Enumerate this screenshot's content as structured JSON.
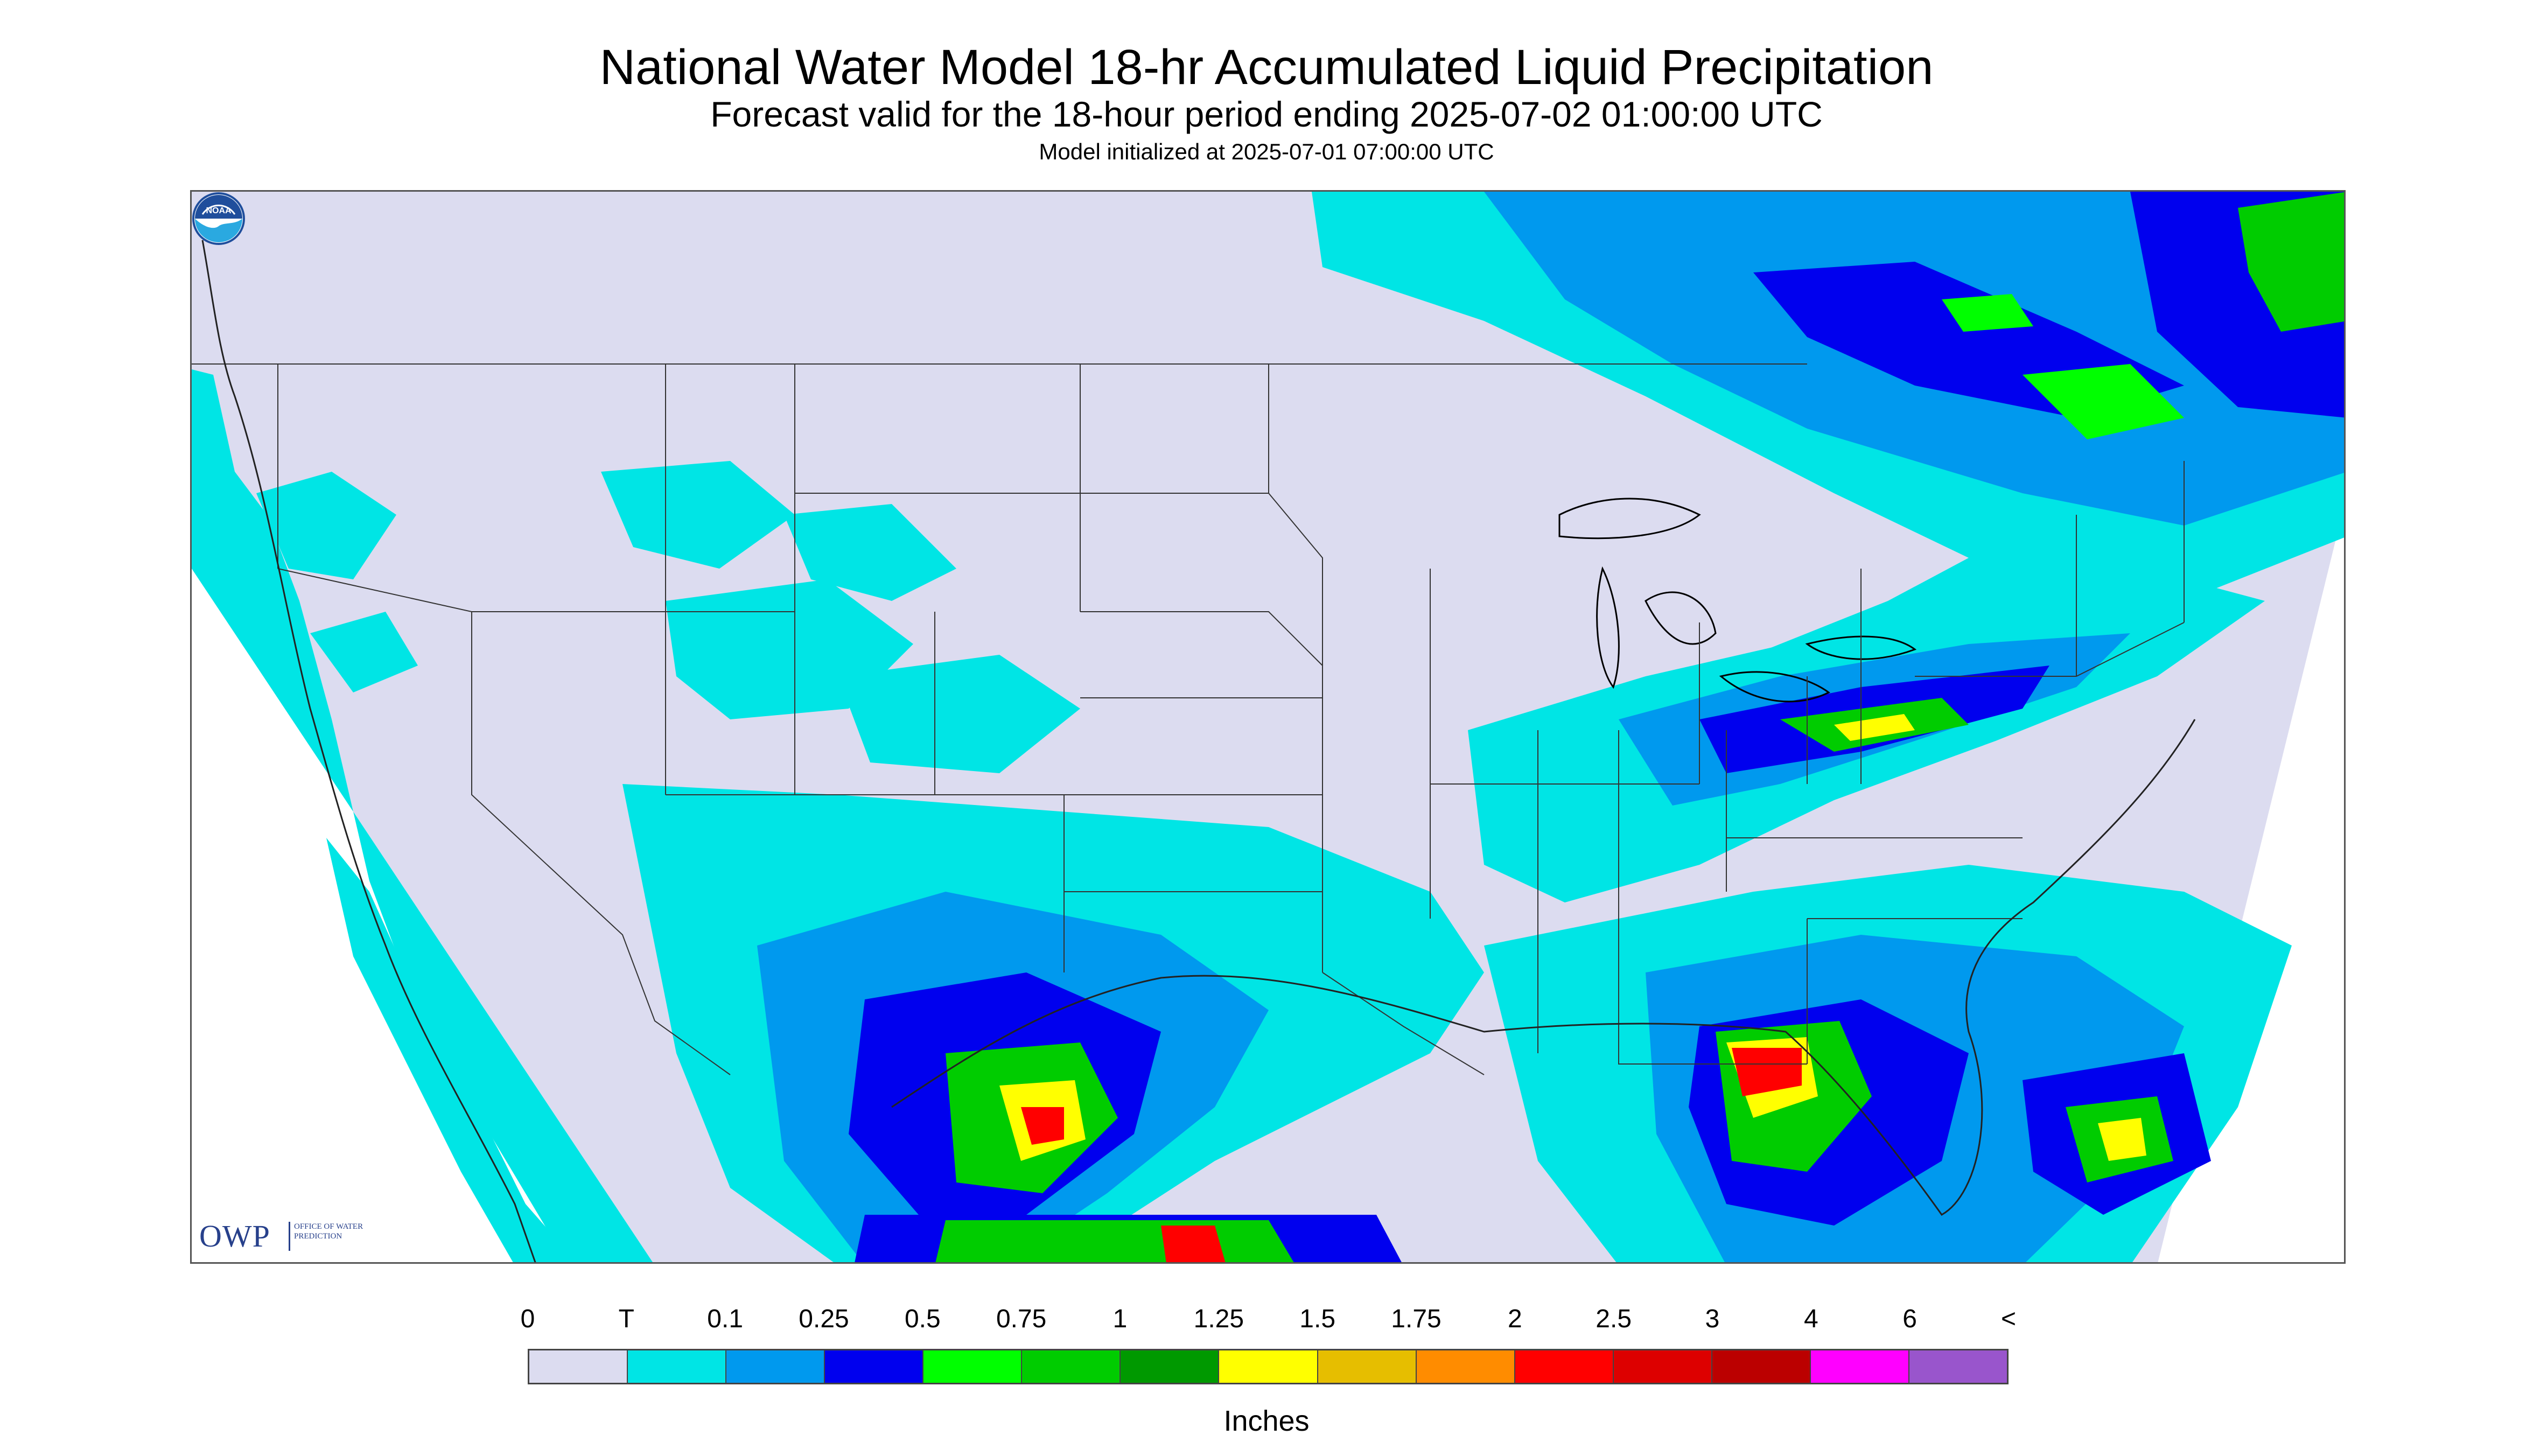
{
  "map": {
    "title": "National Water Model 18-hr Accumulated Liquid Precipitation",
    "subtitle": "Forecast valid for the 18-hour period ending 2025-07-02 01:00:00 UTC",
    "initialized": "Model initialized at 2025-07-01 07:00:00 UTC"
  },
  "logos": {
    "owp_mark": "OWP",
    "owp_name": "Office of Water Prediction",
    "noaa_mark": "NOAA"
  },
  "legend": {
    "tick_labels": [
      "0",
      "T",
      "0.1",
      "0.25",
      "0.5",
      "0.75",
      "1",
      "1.25",
      "1.5",
      "1.75",
      "2",
      "2.5",
      "3",
      "4",
      "6",
      "<"
    ],
    "colors": [
      "#dcdcf0",
      "#00e5e5",
      "#0099ee",
      "#0000ee",
      "#00ff00",
      "#00cc00",
      "#009900",
      "#ffff00",
      "#e6be00",
      "#ff8c00",
      "#ff0000",
      "#dd0000",
      "#bb0000",
      "#ff00ff",
      "#9955cc"
    ],
    "units": "Inches"
  }
}
